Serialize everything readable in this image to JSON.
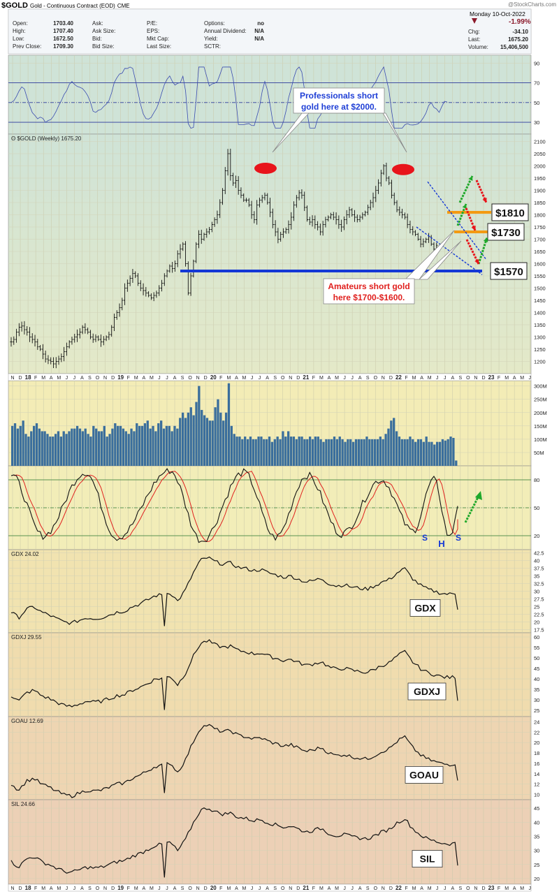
{
  "header": {
    "symbol": "$GOLD",
    "name": "Gold - Continuous Contract (EOD)",
    "exchange": "CME",
    "watermark": "@StockCharts.com",
    "date": "Monday  10-Oct-2022",
    "change_pct": "-1.99%",
    "fields": [
      {
        "label": "Open:",
        "value": "1703.40"
      },
      {
        "label": "High:",
        "value": "1707.40"
      },
      {
        "label": "Low:",
        "value": "1672.50"
      },
      {
        "label": "Prev Close:",
        "value": "1709.30"
      },
      {
        "label": "Ask:",
        "value": ""
      },
      {
        "label": "Ask Size:",
        "value": ""
      },
      {
        "label": "Bid:",
        "value": ""
      },
      {
        "label": "Bid Size:",
        "value": ""
      },
      {
        "label": "P/E:",
        "value": ""
      },
      {
        "label": "EPS:",
        "value": ""
      },
      {
        "label": "Mkt Cap:",
        "value": ""
      },
      {
        "label": "Last Size:",
        "value": ""
      },
      {
        "label": "Options:",
        "value": "no"
      },
      {
        "label": "Annual Dividend:",
        "value": "N/A"
      },
      {
        "label": "Yield:",
        "value": "N/A"
      },
      {
        "label": "SCTR:",
        "value": ""
      },
      {
        "label": "Chg:",
        "value": "-34.10"
      },
      {
        "label": "Last:",
        "value": "1675.20"
      },
      {
        "label": "Volume:",
        "value": "15,406,500"
      }
    ]
  },
  "x_axis_labels": [
    "N",
    "D",
    "18",
    "F",
    "M",
    "A",
    "M",
    "J",
    "J",
    "A",
    "S",
    "O",
    "N",
    "D",
    "19",
    "F",
    "M",
    "A",
    "M",
    "J",
    "J",
    "A",
    "S",
    "O",
    "N",
    "D",
    "20",
    "F",
    "M",
    "A",
    "M",
    "J",
    "J",
    "A",
    "S",
    "O",
    "N",
    "D",
    "21",
    "F",
    "M",
    "A",
    "M",
    "J",
    "J",
    "A",
    "S",
    "O",
    "N",
    "D",
    "22",
    "F",
    "M",
    "A",
    "M",
    "J",
    "J",
    "A",
    "S",
    "O",
    "N",
    "D",
    "23",
    "F",
    "M",
    "A",
    "M",
    "J"
  ],
  "chart_data": [
    {
      "panel": "rsi",
      "type": "line",
      "y_ticks": [
        90,
        70,
        50,
        30
      ],
      "ylim": [
        18,
        98
      ],
      "reference_lines": [
        70,
        50,
        30
      ]
    },
    {
      "panel": "price",
      "type": "ohlc-bar",
      "label": "$GOLD (Weekly) 1675.20",
      "y_ticks": [
        2100,
        2050,
        2000,
        1950,
        1900,
        1850,
        1800,
        1750,
        1700,
        1650,
        1600,
        1550,
        1500,
        1450,
        1400,
        1350,
        1300,
        1250,
        1200
      ],
      "ylim": [
        1150,
        2130
      ],
      "weekly_closes_approx": [
        1280,
        1290,
        1320,
        1340,
        1345,
        1330,
        1320,
        1300,
        1290,
        1280,
        1260,
        1250,
        1230,
        1210,
        1205,
        1200,
        1190,
        1200,
        1210,
        1220,
        1240,
        1260,
        1280,
        1290,
        1300,
        1310,
        1320,
        1340,
        1330,
        1320,
        1300,
        1290,
        1300,
        1290,
        1280,
        1290,
        1300,
        1310,
        1340,
        1380,
        1400,
        1420,
        1450,
        1500,
        1520,
        1540,
        1560,
        1550,
        1520,
        1500,
        1490,
        1480,
        1470,
        1460,
        1470,
        1480,
        1500,
        1520,
        1550,
        1570,
        1590,
        1580,
        1600,
        1640,
        1660,
        1680,
        1600,
        1480,
        1550,
        1610,
        1680,
        1720,
        1700,
        1720,
        1730,
        1740,
        1760,
        1780,
        1800,
        1850,
        1900,
        1980,
        2050,
        1960,
        1930,
        1940,
        1900,
        1880,
        1860,
        1860,
        1840,
        1800,
        1780,
        1840,
        1860,
        1870,
        1880,
        1850,
        1810,
        1760,
        1730,
        1700,
        1720,
        1730,
        1740,
        1760,
        1790,
        1840,
        1870,
        1890,
        1880,
        1830,
        1780,
        1770,
        1780,
        1760,
        1750,
        1730,
        1760,
        1780,
        1790,
        1800,
        1790,
        1780,
        1760,
        1750,
        1780,
        1800,
        1820,
        1800,
        1790,
        1780,
        1790,
        1800,
        1810,
        1830,
        1850,
        1870,
        1900,
        1930,
        1970,
        2000,
        1950,
        1930,
        1880,
        1850,
        1820,
        1810,
        1800,
        1790,
        1760,
        1740,
        1730,
        1720,
        1700,
        1680,
        1690,
        1700,
        1710,
        1680,
        1660,
        1675
      ],
      "annotations": [
        {
          "text": "Professionals short gold here at $2000.",
          "color": "#1f3fd6"
        },
        {
          "text": "Amateurs short gold here $1700-$1600.",
          "color": "#e0201e"
        }
      ],
      "levels": [
        {
          "value": 1810,
          "label": "$1810",
          "color": "#f39a12"
        },
        {
          "value": 1730,
          "label": "$1730",
          "color": "#f39a12"
        },
        {
          "value": 1570,
          "label": "$1570",
          "color": "#1438d6"
        }
      ]
    },
    {
      "panel": "volume",
      "type": "bar",
      "y_ticks_labels": [
        "300M",
        "250M",
        "200M",
        "150M",
        "100M",
        "50M"
      ],
      "y_ticks": [
        300,
        250,
        200,
        150,
        100,
        50
      ],
      "ylim": [
        0,
        320
      ],
      "values_approx": [
        150,
        160,
        140,
        150,
        170,
        120,
        110,
        130,
        150,
        160,
        140,
        130,
        130,
        120,
        110,
        110,
        120,
        130,
        110,
        130,
        120,
        130,
        140,
        140,
        150,
        140,
        130,
        140,
        120,
        110,
        150,
        140,
        130,
        130,
        150,
        110,
        120,
        140,
        160,
        150,
        150,
        140,
        130,
        120,
        140,
        130,
        160,
        150,
        150,
        160,
        170,
        140,
        150,
        130,
        160,
        170,
        140,
        150,
        150,
        130,
        150,
        140,
        180,
        200,
        180,
        200,
        220,
        190,
        240,
        300,
        210,
        190,
        180,
        170,
        170,
        220,
        250,
        200,
        170,
        200,
        310,
        150,
        120,
        110,
        110,
        100,
        110,
        100,
        110,
        100,
        100,
        110,
        110,
        100,
        100,
        110,
        90,
        100,
        110,
        100,
        130,
        110,
        130,
        110,
        110,
        100,
        110,
        110,
        100,
        100,
        110,
        100,
        110,
        110,
        100,
        90,
        100,
        100,
        100,
        110,
        100,
        110,
        100,
        90,
        100,
        100,
        90,
        100,
        100,
        100,
        100,
        110,
        100,
        100,
        100,
        100,
        110,
        100,
        120,
        140,
        170,
        180,
        130,
        110,
        100,
        100,
        100,
        110,
        100,
        90,
        100,
        100,
        90,
        110,
        90,
        90,
        80,
        90,
        90,
        100,
        95,
        100,
        110,
        105,
        20
      ],
      "color": "#3a6e9c"
    },
    {
      "panel": "slow_stochastic",
      "type": "line",
      "y_ticks": [
        80,
        50,
        20
      ],
      "ylim": [
        5,
        95
      ],
      "reference_lines": [
        80,
        50,
        20
      ],
      "pattern_labels": [
        "S",
        "H",
        "S"
      ]
    },
    {
      "panel": "gdx",
      "type": "line",
      "label": "GDX 24.02",
      "y_ticks": [
        42.5,
        40.0,
        37.5,
        35.0,
        32.5,
        30.0,
        27.5,
        25.0,
        22.5,
        20.0,
        17.5
      ],
      "ylim": [
        16.5,
        43.5
      ],
      "box_label": "GDX",
      "first": 23.2,
      "last": 24.02
    },
    {
      "panel": "gdxj",
      "type": "line",
      "label": "GDXJ 29.55",
      "y_ticks": [
        60,
        55,
        50,
        45,
        40,
        35,
        30,
        25
      ],
      "ylim": [
        22,
        62
      ],
      "box_label": "GDXJ",
      "first": 32,
      "last": 29.55
    },
    {
      "panel": "goau",
      "type": "line",
      "label": "GOAU 12.69",
      "y_ticks": [
        24,
        22,
        20,
        18,
        16,
        14,
        12,
        10
      ],
      "ylim": [
        9,
        25
      ],
      "box_label": "GOAU",
      "first": 12,
      "last": 12.69
    },
    {
      "panel": "sil",
      "type": "line",
      "label": "SIL 24.66",
      "y_ticks": [
        45,
        40,
        35,
        30,
        25,
        20
      ],
      "ylim": [
        18,
        48
      ],
      "box_label": "SIL",
      "first": 26,
      "last": 24.66
    }
  ]
}
